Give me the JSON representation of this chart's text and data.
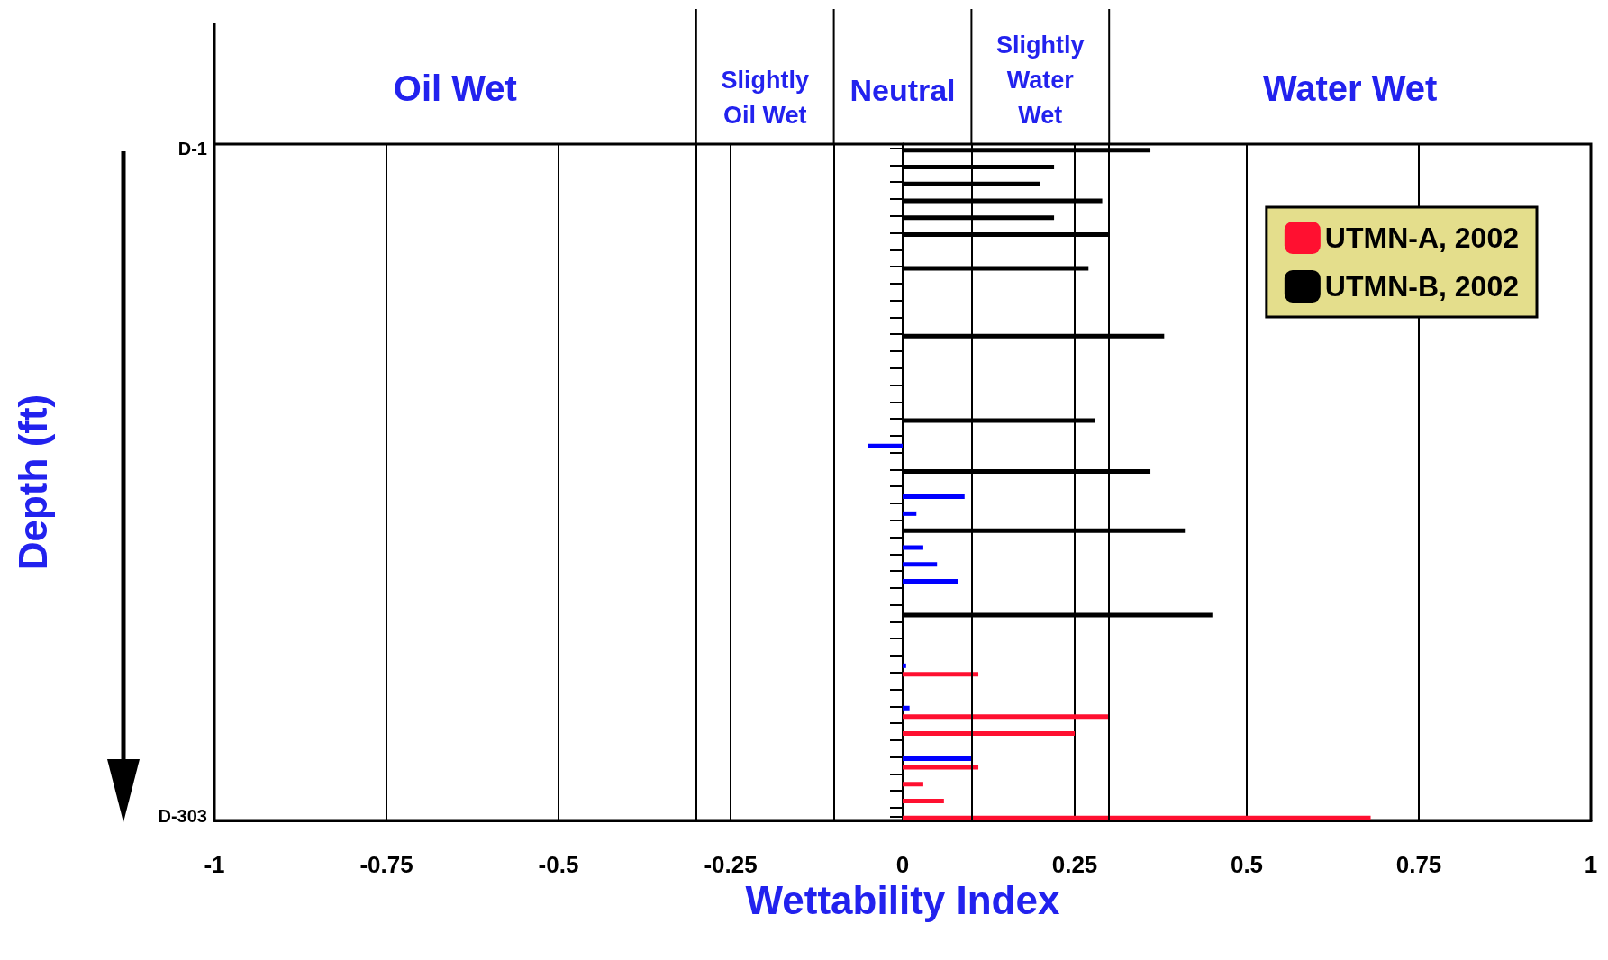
{
  "chart_data": {
    "type": "bar",
    "orientation": "horizontal",
    "xlabel": "Wettability Index",
    "ylabel": "Depth (ft)",
    "categories": [
      "D-1",
      null,
      null,
      null,
      null,
      null,
      null,
      null,
      null,
      null,
      null,
      null,
      null,
      null,
      null,
      null,
      null,
      null,
      null,
      null,
      null,
      null,
      null,
      null,
      null,
      null,
      null,
      null,
      null,
      null,
      null,
      null,
      null,
      null,
      null,
      null,
      null,
      null,
      null,
      null,
      null,
      null,
      null,
      null,
      null,
      null,
      null,
      null,
      null,
      null,
      null,
      null,
      null,
      null,
      null,
      null,
      null,
      null,
      null,
      null,
      null,
      null,
      null,
      null,
      null,
      null,
      null,
      null,
      null,
      null,
      null,
      null,
      null,
      null,
      null,
      null,
      null,
      null,
      null,
      "D-303"
    ],
    "series": [
      {
        "name": "UTMN-A, 2002",
        "color": "#ff1030",
        "values": [
          null,
          null,
          null,
          null,
          null,
          null,
          null,
          null,
          null,
          null,
          null,
          null,
          null,
          null,
          null,
          null,
          null,
          null,
          null,
          null,
          null,
          null,
          null,
          null,
          null,
          null,
          null,
          null,
          null,
          null,
          null,
          null,
          null,
          null,
          null,
          null,
          null,
          null,
          null,
          null,
          null,
          null,
          null,
          null,
          null,
          null,
          null,
          null,
          null,
          null,
          null,
          null,
          null,
          null,
          null,
          null,
          null,
          null,
          null,
          null,
          null,
          null,
          0.11,
          null,
          null,
          null,
          null,
          0.3,
          null,
          0.25,
          null,
          null,
          null,
          0.11,
          null,
          0.03,
          null,
          0.06,
          null,
          0.68
        ]
      },
      {
        "name": "UTMN-B, 2002",
        "color": "#000000",
        "values": [
          0.36,
          null,
          0.22,
          null,
          0.2,
          null,
          0.29,
          null,
          0.22,
          null,
          0.3,
          null,
          null,
          null,
          0.27,
          null,
          null,
          null,
          null,
          null,
          null,
          null,
          0.38,
          null,
          null,
          null,
          null,
          null,
          null,
          null,
          null,
          null,
          0.28,
          null,
          null,
          null,
          null,
          null,
          0.36,
          null,
          null,
          null,
          null,
          null,
          null,
          0.41,
          null,
          null,
          null,
          null,
          null,
          null,
          null,
          null,
          null,
          0.45,
          null,
          null,
          null,
          null,
          null,
          null,
          null,
          null,
          null,
          null,
          null,
          null,
          null,
          null,
          null,
          null,
          null,
          null,
          null,
          null,
          null,
          null,
          null,
          null
        ]
      },
      {
        "color": "#0000ff",
        "values": [
          null,
          null,
          null,
          null,
          null,
          null,
          null,
          null,
          null,
          null,
          null,
          null,
          null,
          null,
          null,
          null,
          null,
          null,
          null,
          null,
          null,
          null,
          null,
          null,
          null,
          null,
          null,
          null,
          null,
          null,
          null,
          null,
          null,
          null,
          null,
          -0.05,
          null,
          null,
          null,
          null,
          null,
          0.09,
          null,
          0.02,
          null,
          null,
          null,
          0.03,
          null,
          0.05,
          null,
          0.08,
          null,
          null,
          null,
          null,
          null,
          null,
          null,
          null,
          null,
          0.005,
          null,
          null,
          null,
          null,
          0.01,
          null,
          null,
          null,
          null,
          null,
          0.1,
          null,
          null,
          null,
          null,
          null,
          null,
          null
        ]
      }
    ],
    "xlim": [
      -1,
      1
    ],
    "xticks": [
      -1,
      -0.75,
      -0.5,
      -0.25,
      0,
      0.25,
      0.5,
      0.75,
      1
    ],
    "annotations": [
      "Oil Wet",
      "Slightly Oil Wet",
      "Neutral",
      "Slightly Water Wet",
      "Water Wet"
    ],
    "ref_lines": [
      {
        "axis": "x",
        "value": -0.3
      },
      {
        "axis": "x",
        "value": -0.1
      },
      {
        "axis": "x",
        "value": 0.1
      },
      {
        "axis": "x",
        "value": 0.3
      }
    ],
    "grid": "x",
    "legend": "top right"
  }
}
